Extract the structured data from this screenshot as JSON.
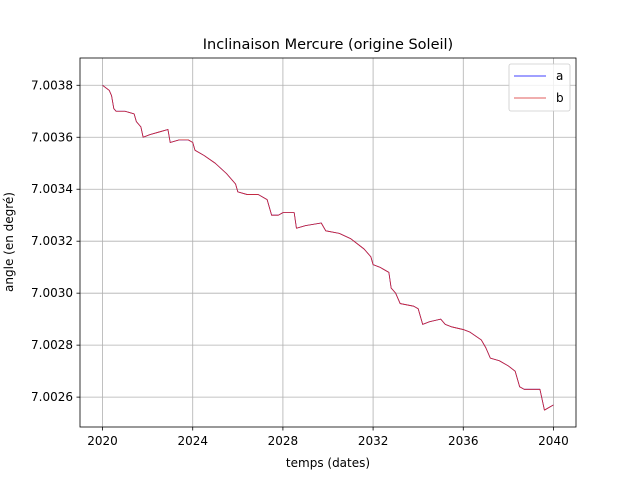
{
  "chart_data": {
    "type": "line",
    "title": "Inclinaison Mercure (origine Soleil)",
    "xlabel": "temps (dates)",
    "ylabel": "angle (en degré)",
    "xlim": [
      2019.0,
      2041.0
    ],
    "ylim": [
      7.002485,
      7.003905
    ],
    "x_ticks": [
      2020,
      2024,
      2028,
      2032,
      2036,
      2040
    ],
    "x_tick_labels": [
      "2020",
      "2024",
      "2028",
      "2032",
      "2036",
      "2040"
    ],
    "y_ticks": [
      7.0026,
      7.0028,
      7.003,
      7.0032,
      7.0034,
      7.0036,
      7.0038
    ],
    "y_tick_labels": [
      "7.0026",
      "7.0028",
      "7.0030",
      "7.0032",
      "7.0034",
      "7.0036",
      "7.0038"
    ],
    "grid": true,
    "legend_position": "top-right",
    "series": [
      {
        "name": "a",
        "color": "#0000ff",
        "points": [
          [
            2020.0,
            7.0038
          ],
          [
            2020.3,
            7.00378
          ],
          [
            2020.4,
            7.00376
          ],
          [
            2020.5,
            7.00371
          ],
          [
            2020.6,
            7.0037
          ],
          [
            2021.0,
            7.0037
          ],
          [
            2021.4,
            7.00369
          ],
          [
            2021.5,
            7.00366
          ],
          [
            2021.7,
            7.00364
          ],
          [
            2021.8,
            7.0036
          ],
          [
            2022.1,
            7.00361
          ],
          [
            2022.5,
            7.00362
          ],
          [
            2022.9,
            7.00363
          ],
          [
            2023.0,
            7.00358
          ],
          [
            2023.4,
            7.00359
          ],
          [
            2023.8,
            7.00359
          ],
          [
            2024.0,
            7.00358
          ],
          [
            2024.1,
            7.00355
          ],
          [
            2024.5,
            7.00353
          ],
          [
            2025.0,
            7.0035
          ],
          [
            2025.5,
            7.00346
          ],
          [
            2025.9,
            7.00342
          ],
          [
            2026.0,
            7.00339
          ],
          [
            2026.4,
            7.00338
          ],
          [
            2026.9,
            7.00338
          ],
          [
            2027.3,
            7.00336
          ],
          [
            2027.5,
            7.0033
          ],
          [
            2027.8,
            7.0033
          ],
          [
            2028.0,
            7.00331
          ],
          [
            2028.5,
            7.00331
          ],
          [
            2028.6,
            7.00325
          ],
          [
            2029.0,
            7.00326
          ],
          [
            2029.7,
            7.00327
          ],
          [
            2029.9,
            7.00324
          ],
          [
            2030.5,
            7.00323
          ],
          [
            2031.0,
            7.00321
          ],
          [
            2031.6,
            7.00317
          ],
          [
            2031.9,
            7.00314
          ],
          [
            2032.0,
            7.00311
          ],
          [
            2032.3,
            7.0031
          ],
          [
            2032.7,
            7.00308
          ],
          [
            2032.8,
            7.00302
          ],
          [
            2033.0,
            7.003
          ],
          [
            2033.2,
            7.00296
          ],
          [
            2033.8,
            7.00295
          ],
          [
            2034.0,
            7.00294
          ],
          [
            2034.2,
            7.00288
          ],
          [
            2034.5,
            7.00289
          ],
          [
            2035.0,
            7.0029
          ],
          [
            2035.2,
            7.00288
          ],
          [
            2035.5,
            7.00287
          ],
          [
            2036.0,
            7.00286
          ],
          [
            2036.3,
            7.00285
          ],
          [
            2036.8,
            7.00282
          ],
          [
            2037.0,
            7.00279
          ],
          [
            2037.2,
            7.00275
          ],
          [
            2037.6,
            7.00274
          ],
          [
            2038.0,
            7.00272
          ],
          [
            2038.3,
            7.0027
          ],
          [
            2038.5,
            7.00264
          ],
          [
            2038.7,
            7.00263
          ],
          [
            2039.0,
            7.00263
          ],
          [
            2039.4,
            7.00263
          ],
          [
            2039.5,
            7.00259
          ],
          [
            2039.6,
            7.00255
          ],
          [
            2039.8,
            7.00256
          ],
          [
            2040.0,
            7.00257
          ]
        ]
      },
      {
        "name": "b",
        "color": "#d62728",
        "points": [
          [
            2020.0,
            7.0038
          ],
          [
            2020.3,
            7.00378
          ],
          [
            2020.4,
            7.00376
          ],
          [
            2020.5,
            7.00371
          ],
          [
            2020.6,
            7.0037
          ],
          [
            2021.0,
            7.0037
          ],
          [
            2021.4,
            7.00369
          ],
          [
            2021.5,
            7.00366
          ],
          [
            2021.7,
            7.00364
          ],
          [
            2021.8,
            7.0036
          ],
          [
            2022.1,
            7.00361
          ],
          [
            2022.5,
            7.00362
          ],
          [
            2022.9,
            7.00363
          ],
          [
            2023.0,
            7.00358
          ],
          [
            2023.4,
            7.00359
          ],
          [
            2023.8,
            7.00359
          ],
          [
            2024.0,
            7.00358
          ],
          [
            2024.1,
            7.00355
          ],
          [
            2024.5,
            7.00353
          ],
          [
            2025.0,
            7.0035
          ],
          [
            2025.5,
            7.00346
          ],
          [
            2025.9,
            7.00342
          ],
          [
            2026.0,
            7.00339
          ],
          [
            2026.4,
            7.00338
          ],
          [
            2026.9,
            7.00338
          ],
          [
            2027.3,
            7.00336
          ],
          [
            2027.5,
            7.0033
          ],
          [
            2027.8,
            7.0033
          ],
          [
            2028.0,
            7.00331
          ],
          [
            2028.5,
            7.00331
          ],
          [
            2028.6,
            7.00325
          ],
          [
            2029.0,
            7.00326
          ],
          [
            2029.7,
            7.00327
          ],
          [
            2029.9,
            7.00324
          ],
          [
            2030.5,
            7.00323
          ],
          [
            2031.0,
            7.00321
          ],
          [
            2031.6,
            7.00317
          ],
          [
            2031.9,
            7.00314
          ],
          [
            2032.0,
            7.00311
          ],
          [
            2032.3,
            7.0031
          ],
          [
            2032.7,
            7.00308
          ],
          [
            2032.8,
            7.00302
          ],
          [
            2033.0,
            7.003
          ],
          [
            2033.2,
            7.00296
          ],
          [
            2033.8,
            7.00295
          ],
          [
            2034.0,
            7.00294
          ],
          [
            2034.2,
            7.00288
          ],
          [
            2034.5,
            7.00289
          ],
          [
            2035.0,
            7.0029
          ],
          [
            2035.2,
            7.00288
          ],
          [
            2035.5,
            7.00287
          ],
          [
            2036.0,
            7.00286
          ],
          [
            2036.3,
            7.00285
          ],
          [
            2036.8,
            7.00282
          ],
          [
            2037.0,
            7.00279
          ],
          [
            2037.2,
            7.00275
          ],
          [
            2037.6,
            7.00274
          ],
          [
            2038.0,
            7.00272
          ],
          [
            2038.3,
            7.0027
          ],
          [
            2038.5,
            7.00264
          ],
          [
            2038.7,
            7.00263
          ],
          [
            2039.0,
            7.00263
          ],
          [
            2039.4,
            7.00263
          ],
          [
            2039.5,
            7.00259
          ],
          [
            2039.6,
            7.00255
          ],
          [
            2039.8,
            7.00256
          ],
          [
            2040.0,
            7.00257
          ]
        ]
      }
    ]
  }
}
